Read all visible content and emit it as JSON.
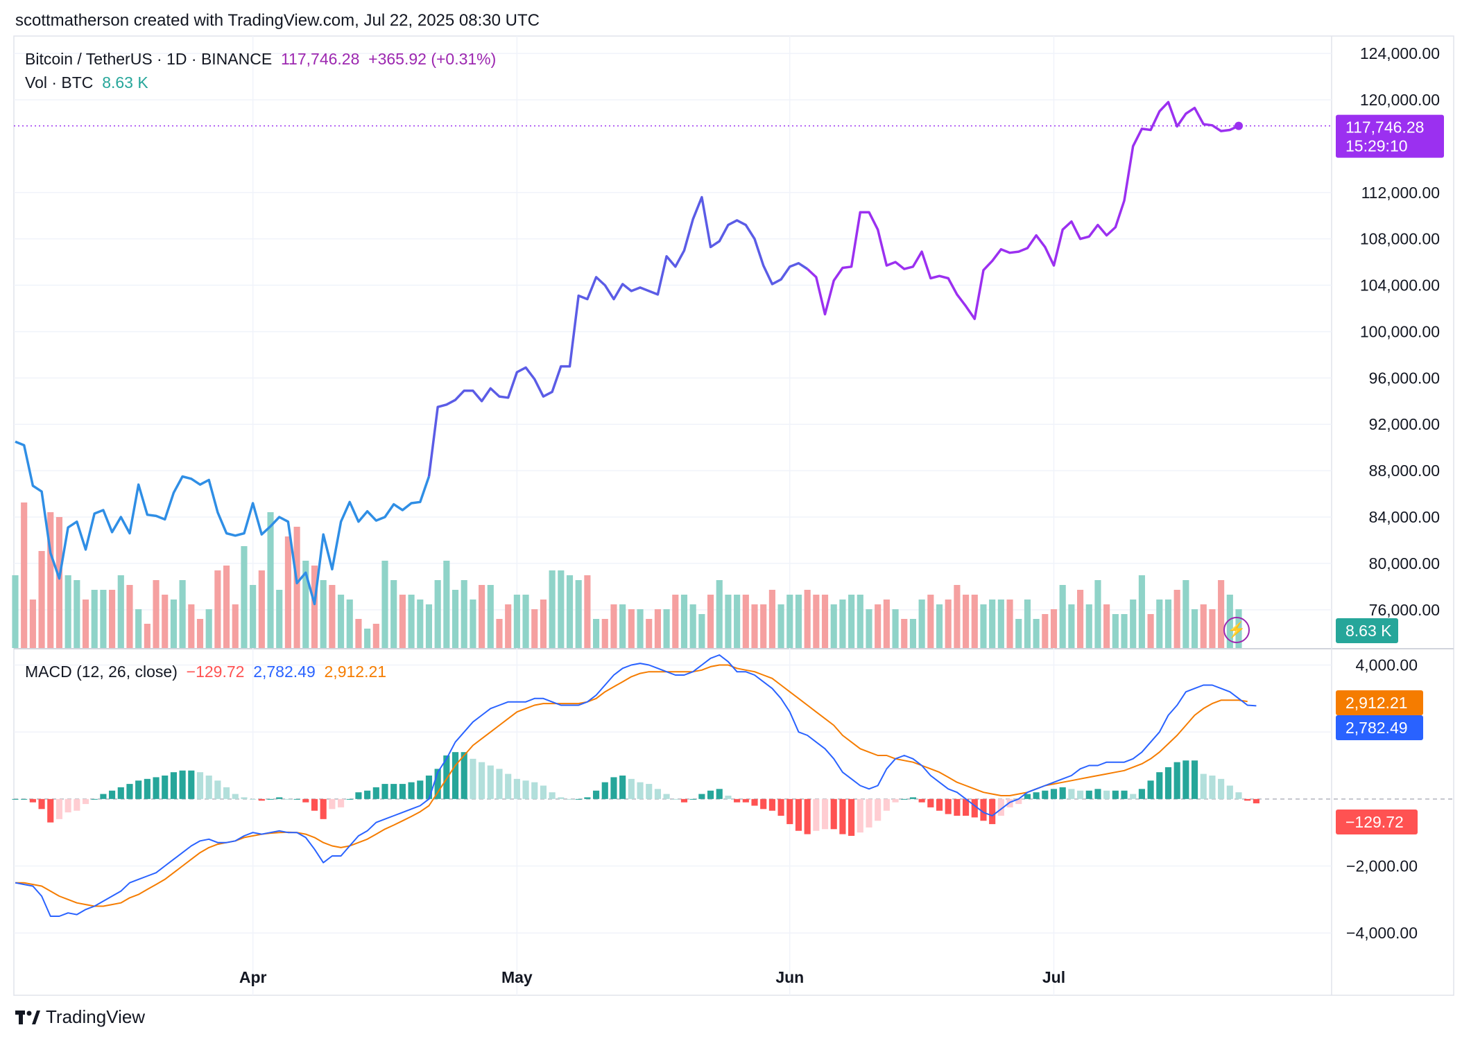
{
  "header": {
    "created_by": "scottmatherson created with TradingView.com, Jul 22, 2025 08:30 UTC"
  },
  "legend": {
    "symbol": "Bitcoin / TetherUS · 1D · BINANCE",
    "price": "117,746.28",
    "change": "+365.92 (+0.31%)",
    "vol_label": "Vol · BTC",
    "vol_value": "8.63 K",
    "macd_label": "MACD (12, 26, close)",
    "macd_hist": "−129.72",
    "macd_line": "2,782.49",
    "macd_signal": "2,912.21"
  },
  "price_tag": {
    "price": "117,746.28",
    "countdown": "15:29:10"
  },
  "vol_tag": "8.63 K",
  "macd_tags": {
    "signal": "2,912.21",
    "line": "2,782.49",
    "hist": "−129.72"
  },
  "footer": {
    "brand": "TradingView"
  },
  "colors": {
    "price_early": "#2f8ee5",
    "price_mid": "#5b5ce6",
    "price_late": "#9b30f0",
    "vol_up": "#8fd3c8",
    "vol_down": "#f5a0a0",
    "macd_line": "#2962ff",
    "signal_line": "#f57c00",
    "hist_up_strong": "#26a69a",
    "hist_up_weak": "#b2dfdb",
    "hist_down_strong": "#ff5252",
    "hist_down_weak": "#ffcdd2"
  },
  "chart_data": [
    {
      "type": "line",
      "title": "Bitcoin / TetherUS · 1D · BINANCE",
      "x_range": [
        "2025-03-05",
        "2025-07-22"
      ],
      "ylim": [
        73000,
        125500
      ],
      "y_ticks": [
        "124,000.00",
        "120,000.00",
        "112,000.00",
        "108,000.00",
        "104,000.00",
        "100,000.00",
        "96,000.00",
        "92,000.00",
        "88,000.00",
        "84,000.00",
        "80,000.00",
        "76,000.00"
      ],
      "x_ticks": [
        "Apr",
        "May",
        "Jun",
        "Jul"
      ],
      "legend_position": "top-left",
      "series": [
        {
          "values": [
            90500,
            90200,
            86700,
            86200,
            80900,
            78700,
            83100,
            83600,
            81200,
            84300,
            84600,
            82700,
            84000,
            82600,
            86800,
            84200,
            84100,
            83800,
            86100,
            87500,
            87300,
            86800,
            87200,
            84400,
            82600,
            82400,
            82600,
            85200,
            82500,
            83200,
            84000,
            83600,
            78300,
            79200,
            76500,
            82500,
            79500,
            83600,
            85300,
            83600,
            84500,
            83700,
            84000,
            85100,
            84600,
            85200,
            85300,
            87500,
            93500,
            93700,
            94100,
            94900,
            94900,
            94000,
            95100,
            94400,
            94300,
            96500,
            96900,
            95900,
            94400,
            94800,
            97000,
            97000,
            103100,
            102800,
            104700,
            104000,
            102800,
            104100,
            103500,
            103800,
            103500,
            103200,
            106500,
            105600,
            107000,
            109700,
            111600,
            107300,
            107800,
            109200,
            109600,
            109200,
            108000,
            105700,
            104100,
            104500,
            105600,
            105900,
            105400,
            104700,
            101500,
            104400,
            105500,
            105600,
            110300,
            110300,
            108800,
            105700,
            106000,
            105400,
            105600,
            106900,
            104600,
            104800,
            104600,
            103200,
            102200,
            101100,
            105300,
            106100,
            107100,
            106800,
            106900,
            107200,
            108300,
            107300,
            105700,
            108800,
            109500,
            108000,
            108200,
            109200,
            108300,
            109000,
            111300,
            116000,
            117500,
            117400,
            119000,
            119800,
            117700,
            118800,
            119300,
            117900,
            117800,
            117300,
            117400,
            117750
          ]
        },
        {
          "name": "Vol · BTC",
          "values": [
            15,
            30,
            10,
            20,
            28,
            27,
            15,
            14,
            10,
            12,
            12,
            12,
            15,
            13,
            8,
            5,
            14,
            11,
            10,
            14,
            9,
            6,
            8,
            16,
            17,
            9,
            21,
            13,
            16,
            28,
            12,
            23,
            25,
            18,
            17,
            14,
            13,
            11,
            10,
            6,
            4,
            5,
            18,
            14,
            11,
            11,
            10,
            9,
            14,
            18,
            12,
            14,
            10,
            13,
            13,
            6,
            9,
            11,
            11,
            8,
            10,
            16,
            16,
            15,
            14,
            15,
            6,
            6,
            9,
            9,
            8,
            8,
            6,
            8,
            8,
            11,
            11,
            9,
            7,
            11,
            14,
            11,
            11,
            11,
            9,
            9,
            12,
            9,
            11,
            11,
            12,
            11,
            11,
            9,
            10,
            11,
            11,
            8,
            9,
            10,
            8,
            6,
            6,
            10,
            11,
            9,
            10,
            13,
            11,
            11,
            9,
            10,
            10,
            10,
            6,
            10,
            6,
            7,
            8,
            13,
            9,
            12,
            9,
            14,
            9,
            7,
            7,
            10,
            15,
            7,
            10,
            10,
            12,
            14,
            8,
            9,
            8,
            14,
            11,
            8
          ],
          "unit": "K"
        }
      ]
    },
    {
      "type": "line",
      "title": "MACD (12, 26, close)",
      "ylim": [
        -4700,
        4300
      ],
      "y_ticks": [
        "4,000.00",
        "2,000.00",
        "−2,000.00",
        "−4,000.00"
      ],
      "series": [
        {
          "name": "MACD",
          "values": [
            -2500,
            -2550,
            -2600,
            -2900,
            -3500,
            -3500,
            -3400,
            -3450,
            -3300,
            -3200,
            -3050,
            -2900,
            -2750,
            -2500,
            -2400,
            -2300,
            -2200,
            -2000,
            -1800,
            -1600,
            -1400,
            -1250,
            -1200,
            -1300,
            -1300,
            -1250,
            -1100,
            -1000,
            -1050,
            -1000,
            -950,
            -1000,
            -1000,
            -1150,
            -1500,
            -1900,
            -1700,
            -1700,
            -1400,
            -1100,
            -950,
            -700,
            -600,
            -500,
            -400,
            -300,
            -200,
            0,
            800,
            1200,
            1700,
            2000,
            2300,
            2500,
            2700,
            2800,
            2900,
            2900,
            2900,
            3000,
            3000,
            2900,
            2800,
            2800,
            2800,
            2900,
            3100,
            3400,
            3700,
            3900,
            4000,
            4050,
            4000,
            3900,
            3800,
            3700,
            3700,
            3800,
            4000,
            4200,
            4300,
            4100,
            3800,
            3800,
            3700,
            3500,
            3300,
            3000,
            2600,
            2000,
            1900,
            1700,
            1500,
            1200,
            800,
            600,
            400,
            300,
            400,
            900,
            1200,
            1300,
            1200,
            1000,
            700,
            500,
            300,
            200,
            0,
            -200,
            -400,
            -500,
            -300,
            -100,
            0,
            200,
            300,
            400,
            500,
            600,
            700,
            900,
            1000,
            1000,
            1100,
            1100,
            1100,
            1200,
            1400,
            1700,
            2000,
            2500,
            2800,
            3200,
            3300,
            3400,
            3400,
            3300,
            3200,
            3000,
            2800,
            2782
          ]
        },
        {
          "name": "Signal",
          "values": [
            -2500,
            -2500,
            -2550,
            -2600,
            -2750,
            -2900,
            -3000,
            -3100,
            -3150,
            -3200,
            -3200,
            -3150,
            -3100,
            -2950,
            -2850,
            -2700,
            -2550,
            -2400,
            -2200,
            -2000,
            -1800,
            -1600,
            -1450,
            -1350,
            -1300,
            -1250,
            -1150,
            -1100,
            -1050,
            -1020,
            -1000,
            -990,
            -1000,
            -1050,
            -1150,
            -1300,
            -1400,
            -1450,
            -1400,
            -1300,
            -1200,
            -1050,
            -900,
            -780,
            -650,
            -520,
            -380,
            -200,
            200,
            600,
            1000,
            1300,
            1600,
            1800,
            2000,
            2200,
            2400,
            2600,
            2700,
            2800,
            2850,
            2850,
            2850,
            2850,
            2850,
            2900,
            3000,
            3200,
            3350,
            3500,
            3650,
            3750,
            3800,
            3800,
            3800,
            3800,
            3800,
            3800,
            3850,
            3950,
            4000,
            4000,
            3900,
            3850,
            3800,
            3700,
            3600,
            3400,
            3200,
            3000,
            2800,
            2600,
            2400,
            2200,
            1900,
            1700,
            1500,
            1400,
            1300,
            1300,
            1200,
            1150,
            1100,
            1000,
            900,
            800,
            650,
            500,
            400,
            300,
            200,
            150,
            100,
            100,
            150,
            200,
            300,
            400,
            450,
            500,
            550,
            600,
            650,
            700,
            750,
            800,
            850,
            950,
            1050,
            1200,
            1400,
            1650,
            1900,
            2200,
            2500,
            2700,
            2850,
            2950,
            2950,
            2950,
            2912
          ]
        },
        {
          "name": "Histogram",
          "values": [
            0,
            0,
            -100,
            -300,
            -700,
            -600,
            -400,
            -350,
            -150,
            0,
            150,
            250,
            350,
            450,
            550,
            600,
            650,
            700,
            800,
            850,
            850,
            800,
            700,
            550,
            350,
            150,
            50,
            0,
            -50,
            0,
            50,
            0,
            0,
            -100,
            -350,
            -600,
            -300,
            -250,
            0,
            200,
            250,
            350,
            450,
            450,
            450,
            500,
            550,
            700,
            900,
            1300,
            1400,
            1400,
            1200,
            1100,
            1000,
            900,
            750,
            600,
            550,
            500,
            400,
            200,
            50,
            0,
            0,
            50,
            250,
            500,
            650,
            700,
            600,
            500,
            450,
            300,
            150,
            0,
            -100,
            0,
            150,
            250,
            300,
            100,
            -100,
            -100,
            -200,
            -300,
            -350,
            -500,
            -750,
            -950,
            -1050,
            -950,
            -900,
            -900,
            -1050,
            -1100,
            -1000,
            -850,
            -650,
            -350,
            -100,
            0,
            50,
            -100,
            -250,
            -350,
            -450,
            -500,
            -500,
            -550,
            -650,
            -750,
            -500,
            -250,
            -150,
            150,
            200,
            250,
            300,
            350,
            300,
            250,
            250,
            300,
            250,
            250,
            250,
            150,
            300,
            550,
            800,
            950,
            1100,
            1150,
            1150,
            750,
            700,
            600,
            400,
            200,
            -50,
            -129.72
          ]
        }
      ]
    }
  ]
}
